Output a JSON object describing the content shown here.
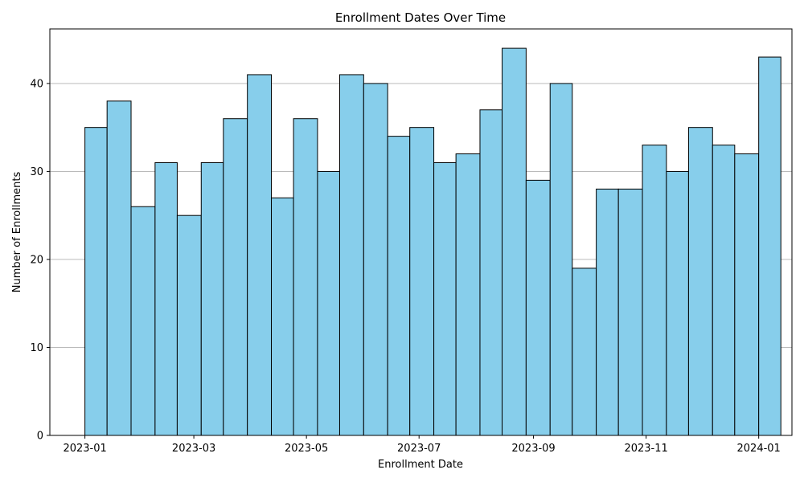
{
  "chart_data": {
    "type": "bar",
    "title": "Enrollment Dates Over Time",
    "xlabel": "Enrollment Date",
    "ylabel": "Number of Enrollments",
    "histogram": true,
    "x_axis": "date",
    "xlim": [
      "2022-12-13",
      "2024-01-19"
    ],
    "bins": [
      {
        "start": "2023-01-01",
        "end": "2023-01-13",
        "count": 35
      },
      {
        "start": "2023-01-13",
        "end": "2023-01-26",
        "count": 38
      },
      {
        "start": "2023-01-26",
        "end": "2023-02-08",
        "count": 26
      },
      {
        "start": "2023-02-08",
        "end": "2023-02-20",
        "count": 31
      },
      {
        "start": "2023-02-20",
        "end": "2023-03-05",
        "count": 25
      },
      {
        "start": "2023-03-05",
        "end": "2023-03-17",
        "count": 31
      },
      {
        "start": "2023-03-17",
        "end": "2023-03-30",
        "count": 36
      },
      {
        "start": "2023-03-30",
        "end": "2023-04-12",
        "count": 41
      },
      {
        "start": "2023-04-12",
        "end": "2023-04-24",
        "count": 27
      },
      {
        "start": "2023-04-24",
        "end": "2023-05-07",
        "count": 36
      },
      {
        "start": "2023-05-07",
        "end": "2023-05-19",
        "count": 30
      },
      {
        "start": "2023-05-19",
        "end": "2023-06-01",
        "count": 41
      },
      {
        "start": "2023-06-01",
        "end": "2023-06-14",
        "count": 40
      },
      {
        "start": "2023-06-14",
        "end": "2023-06-26",
        "count": 34
      },
      {
        "start": "2023-06-26",
        "end": "2023-07-09",
        "count": 35
      },
      {
        "start": "2023-07-09",
        "end": "2023-07-21",
        "count": 31
      },
      {
        "start": "2023-07-21",
        "end": "2023-08-03",
        "count": 32
      },
      {
        "start": "2023-08-03",
        "end": "2023-08-15",
        "count": 37
      },
      {
        "start": "2023-08-15",
        "end": "2023-08-28",
        "count": 44
      },
      {
        "start": "2023-08-28",
        "end": "2023-09-10",
        "count": 29
      },
      {
        "start": "2023-09-10",
        "end": "2023-09-22",
        "count": 40
      },
      {
        "start": "2023-09-22",
        "end": "2023-10-05",
        "count": 19
      },
      {
        "start": "2023-10-05",
        "end": "2023-10-17",
        "count": 28
      },
      {
        "start": "2023-10-17",
        "end": "2023-10-30",
        "count": 28
      },
      {
        "start": "2023-10-30",
        "end": "2023-11-12",
        "count": 33
      },
      {
        "start": "2023-11-12",
        "end": "2023-11-24",
        "count": 30
      },
      {
        "start": "2023-11-24",
        "end": "2023-12-07",
        "count": 35
      },
      {
        "start": "2023-12-07",
        "end": "2023-12-19",
        "count": 33
      },
      {
        "start": "2023-12-19",
        "end": "2024-01-01",
        "count": 32
      },
      {
        "start": "2024-01-01",
        "end": "2024-01-13",
        "count": 43
      }
    ],
    "ylim": [
      0,
      46.2
    ],
    "x_ticks": [
      {
        "date": "2023-01-01",
        "label": "2023-01"
      },
      {
        "date": "2023-03-01",
        "label": "2023-03"
      },
      {
        "date": "2023-05-01",
        "label": "2023-05"
      },
      {
        "date": "2023-07-01",
        "label": "2023-07"
      },
      {
        "date": "2023-09-01",
        "label": "2023-09"
      },
      {
        "date": "2023-11-01",
        "label": "2023-11"
      },
      {
        "date": "2024-01-01",
        "label": "2024-01"
      }
    ],
    "y_ticks": [
      0,
      10,
      20,
      30,
      40
    ],
    "grid": "y",
    "bar_color": "#87ceeb",
    "edge_color": "#000000",
    "grid_color": "#b0b0b0"
  }
}
